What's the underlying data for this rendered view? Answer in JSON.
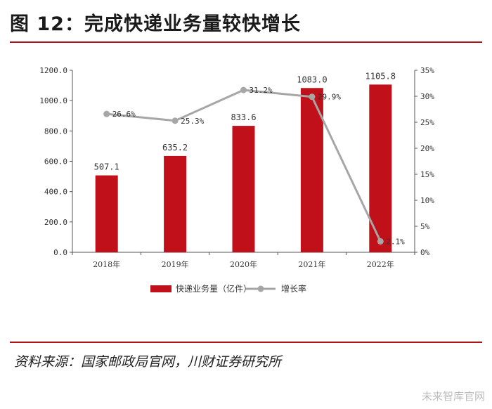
{
  "header": {
    "title": "图 12：完成快递业务量较快增长"
  },
  "footer": {
    "source": "资料来源：国家邮政局官网，川财证券研究所",
    "watermark": "未来智库官网"
  },
  "colors": {
    "bar": "#c0101a",
    "line": "#a6a6a6",
    "rule": "#b0121a"
  },
  "chart_data": {
    "type": "bar",
    "title": "",
    "categories": [
      "2018年",
      "2019年",
      "2020年",
      "2021年",
      "2022年"
    ],
    "series": [
      {
        "name": "快递业务量（亿件）",
        "type": "bar",
        "axis": "left",
        "values": [
          507.1,
          635.2,
          833.6,
          1083.0,
          1105.8
        ],
        "labels": [
          "507.1",
          "635.2",
          "833.6",
          "1083.0",
          "1105.8"
        ]
      },
      {
        "name": "增长率",
        "type": "line",
        "axis": "right",
        "values": [
          26.6,
          25.3,
          31.2,
          29.9,
          2.1
        ],
        "labels": [
          "26.6%",
          "25.3%",
          "31.2%",
          "29.9%",
          "2.1%"
        ]
      }
    ],
    "y_left": {
      "min": 0,
      "max": 1200,
      "ticks": [
        "0.0",
        "200.0",
        "400.0",
        "600.0",
        "800.0",
        "1000.0",
        "1200.0"
      ]
    },
    "y_right": {
      "min": 0,
      "max": 35,
      "ticks": [
        "0%",
        "5%",
        "10%",
        "15%",
        "20%",
        "25%",
        "30%",
        "35%"
      ]
    },
    "grid": false,
    "legend_position": "bottom"
  }
}
